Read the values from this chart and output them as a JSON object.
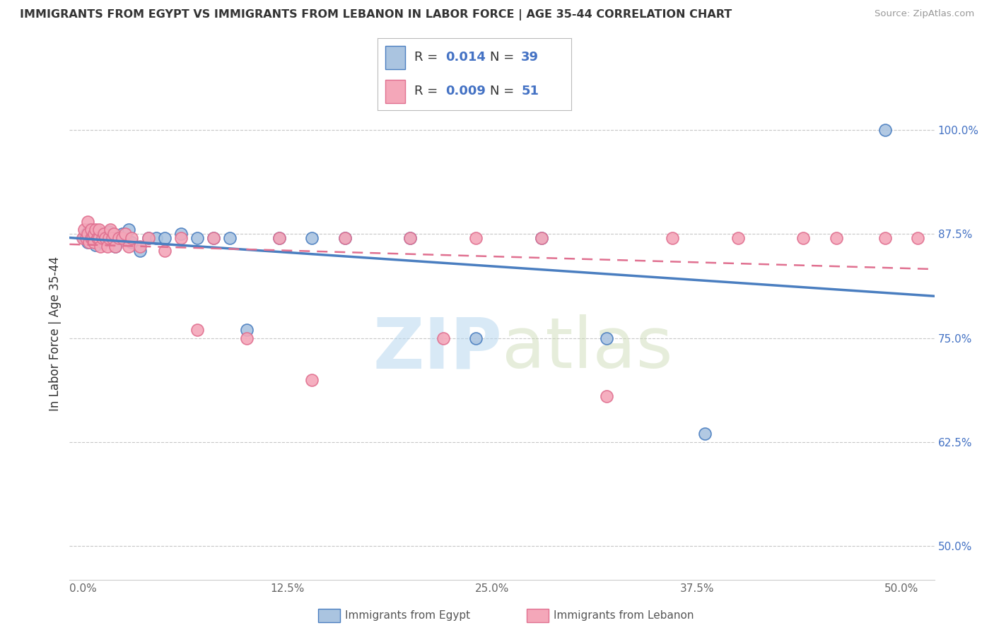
{
  "title": "IMMIGRANTS FROM EGYPT VS IMMIGRANTS FROM LEBANON IN LABOR FORCE | AGE 35-44 CORRELATION CHART",
  "source": "Source: ZipAtlas.com",
  "ylabel": "In Labor Force | Age 35-44",
  "legend_label1": "Immigrants from Egypt",
  "legend_label2": "Immigrants from Lebanon",
  "r_egypt": "0.014",
  "n_egypt": "39",
  "r_lebanon": "0.009",
  "n_lebanon": "51",
  "x_ticks": [
    "0.0%",
    "12.5%",
    "25.0%",
    "37.5%",
    "50.0%"
  ],
  "x_tick_vals": [
    0.0,
    0.125,
    0.25,
    0.375,
    0.5
  ],
  "y_ticks": [
    "50.0%",
    "62.5%",
    "75.0%",
    "87.5%",
    "100.0%"
  ],
  "y_tick_vals": [
    0.5,
    0.625,
    0.75,
    0.875,
    1.0
  ],
  "xlim": [
    -0.008,
    0.52
  ],
  "ylim": [
    0.46,
    1.05
  ],
  "egypt_scatter_x": [
    0.001,
    0.002,
    0.003,
    0.004,
    0.005,
    0.006,
    0.007,
    0.008,
    0.009,
    0.01,
    0.012,
    0.013,
    0.015,
    0.016,
    0.018,
    0.02,
    0.022,
    0.024,
    0.026,
    0.028,
    0.03,
    0.035,
    0.04,
    0.045,
    0.05,
    0.06,
    0.07,
    0.08,
    0.09,
    0.1,
    0.12,
    0.14,
    0.16,
    0.2,
    0.24,
    0.28,
    0.32,
    0.38,
    0.49
  ],
  "egypt_scatter_y": [
    0.87,
    0.875,
    0.865,
    0.88,
    0.872,
    0.868,
    0.876,
    0.862,
    0.878,
    0.87,
    0.865,
    0.872,
    0.87,
    0.878,
    0.87,
    0.86,
    0.87,
    0.875,
    0.87,
    0.88,
    0.865,
    0.855,
    0.87,
    0.87,
    0.87,
    0.875,
    0.87,
    0.87,
    0.87,
    0.76,
    0.87,
    0.87,
    0.87,
    0.87,
    0.75,
    0.87,
    0.75,
    0.635,
    1.0
  ],
  "lebanon_scatter_x": [
    0.0,
    0.001,
    0.002,
    0.003,
    0.003,
    0.004,
    0.005,
    0.005,
    0.006,
    0.007,
    0.007,
    0.008,
    0.009,
    0.01,
    0.01,
    0.011,
    0.012,
    0.013,
    0.014,
    0.015,
    0.016,
    0.017,
    0.018,
    0.019,
    0.02,
    0.022,
    0.024,
    0.026,
    0.028,
    0.03,
    0.035,
    0.04,
    0.05,
    0.06,
    0.07,
    0.08,
    0.1,
    0.12,
    0.14,
    0.16,
    0.2,
    0.22,
    0.24,
    0.28,
    0.32,
    0.36,
    0.4,
    0.44,
    0.46,
    0.49,
    0.51
  ],
  "lebanon_scatter_y": [
    0.87,
    0.88,
    0.87,
    0.875,
    0.89,
    0.865,
    0.87,
    0.88,
    0.87,
    0.875,
    0.865,
    0.88,
    0.87,
    0.87,
    0.88,
    0.86,
    0.87,
    0.875,
    0.87,
    0.86,
    0.87,
    0.88,
    0.87,
    0.875,
    0.86,
    0.87,
    0.87,
    0.875,
    0.86,
    0.87,
    0.86,
    0.87,
    0.855,
    0.87,
    0.76,
    0.87,
    0.75,
    0.87,
    0.7,
    0.87,
    0.87,
    0.75,
    0.87,
    0.87,
    0.68,
    0.87,
    0.87,
    0.87,
    0.87,
    0.87,
    0.87
  ],
  "egypt_color": "#aac4e0",
  "lebanon_color": "#f4a7b9",
  "egypt_line_color": "#4a7ec0",
  "lebanon_line_color": "#e07090",
  "watermark_zip": "ZIP",
  "watermark_atlas": "atlas",
  "background_color": "#ffffff",
  "grid_color": "#c8c8c8",
  "title_color": "#333333",
  "axis_tick_color": "#4472c4",
  "legend_val_color": "#4472c4",
  "legend_label_color": "#333333"
}
